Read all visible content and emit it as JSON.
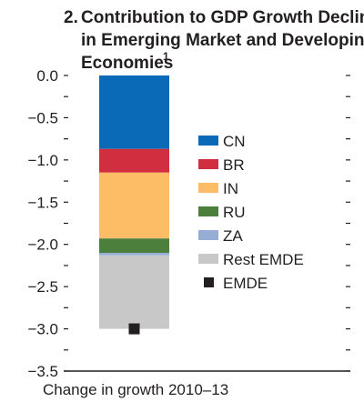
{
  "chart_data": {
    "type": "bar",
    "title_number": "2.",
    "title_lines": [
      "Contribution to GDP Growth Decline",
      "in Emerging Market and Developing",
      "Economies"
    ],
    "title_superscript": "1",
    "xlabel": "Change in growth 2010–13",
    "ylabel": "",
    "ylim": [
      -3.5,
      0.0
    ],
    "y_ticks": [
      0.0,
      -0.5,
      -1.0,
      -1.5,
      -2.0,
      -2.5,
      -3.0,
      -3.5
    ],
    "y_tick_labels": [
      "0.0",
      "−0.5",
      "−1.0",
      "−1.5",
      "−2.0",
      "−2.5",
      "−3.0",
      "−3.5"
    ],
    "stacked": true,
    "series": [
      {
        "name": "CN",
        "value": -0.87,
        "color": "#0a6ab8"
      },
      {
        "name": "BR",
        "value": -0.28,
        "color": "#d12e3f"
      },
      {
        "name": "IN",
        "value": -0.78,
        "color": "#fdbd66"
      },
      {
        "name": "RU",
        "value": -0.17,
        "color": "#4c7f3c"
      },
      {
        "name": "ZA",
        "value": -0.03,
        "color": "#96aed6"
      },
      {
        "name": "Rest EMDE",
        "value": -0.87,
        "color": "#c8c8c8"
      }
    ],
    "total": {
      "name": "EMDE",
      "value": -3.0,
      "color": "#231f20",
      "marker": "square"
    },
    "legend": {
      "placement": "right"
    }
  }
}
